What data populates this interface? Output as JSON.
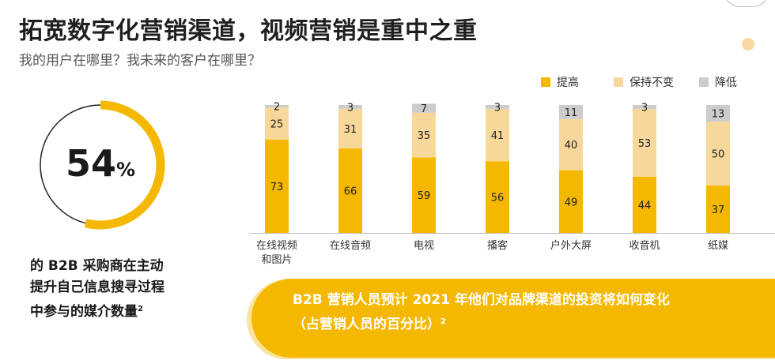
{
  "header": {
    "title": "拓宽数字化营销渠道，视频营销是重中之重",
    "subtitle": "我的用户在哪里？我未来的客户在哪里？"
  },
  "stat": {
    "value": "54",
    "unit": "%",
    "fraction": 0.54,
    "caption_lines": [
      "的 B2B 采购商在主动",
      "提升自己信息搜寻过程",
      "中参与的媒介数量"
    ],
    "footnote": "2"
  },
  "legend": {
    "items": [
      {
        "label": "提高",
        "color": "#f5b800"
      },
      {
        "label": "保持不变",
        "color": "#f8d89a"
      },
      {
        "label": "降低",
        "color": "#cccccc"
      }
    ]
  },
  "chart_data": {
    "type": "bar",
    "stacked": true,
    "categories": [
      "在线视频\n和图片",
      "在线音频",
      "电视",
      "播客",
      "户外大屏",
      "收音机",
      "纸媒"
    ],
    "series": [
      {
        "name": "提高",
        "color": "#f5b800",
        "values": [
          73,
          66,
          59,
          56,
          49,
          44,
          37
        ]
      },
      {
        "name": "保持不变",
        "color": "#f8d89a",
        "values": [
          25,
          31,
          35,
          41,
          40,
          53,
          50
        ]
      },
      {
        "name": "降低",
        "color": "#cccccc",
        "values": [
          2,
          3,
          7,
          3,
          11,
          3,
          13
        ]
      }
    ],
    "ylim": [
      0,
      100
    ],
    "grid": false,
    "legend_position": "top-right"
  },
  "banner": {
    "line1": "B2B 营销人员预计 2021 年他们对品牌渠道的投资将如何变化",
    "line2": "（占营销人员的百分比）",
    "footnote": "2"
  },
  "colors": {
    "accent": "#f5b800",
    "ring_track": "#222222"
  }
}
